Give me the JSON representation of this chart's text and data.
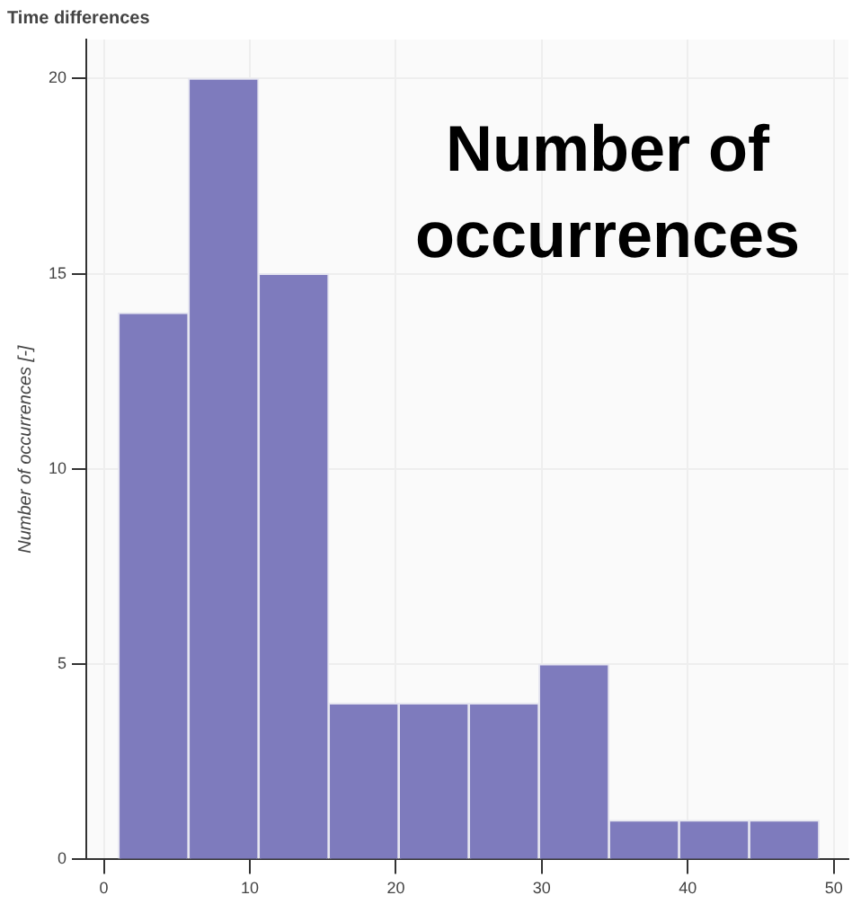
{
  "chart_data": {
    "type": "histogram",
    "title": "Time differences",
    "ylabel": "Number of occurrences [-]",
    "annotations": [
      "Number of occurrences"
    ],
    "bins": [
      1,
      5.8,
      10.6,
      15.4,
      20.2,
      25,
      29.8,
      34.6,
      39.4,
      44.2,
      49
    ],
    "values": [
      14,
      20,
      15,
      4,
      4,
      4,
      5,
      1,
      1,
      1
    ],
    "color": "#7e7bbd",
    "xlim": [
      -1.2,
      51
    ],
    "xticks": [
      0,
      10,
      20,
      30,
      40,
      50
    ],
    "ylim": [
      0,
      21
    ],
    "yticks": [
      0,
      5,
      10,
      15,
      20
    ],
    "grid": true
  }
}
